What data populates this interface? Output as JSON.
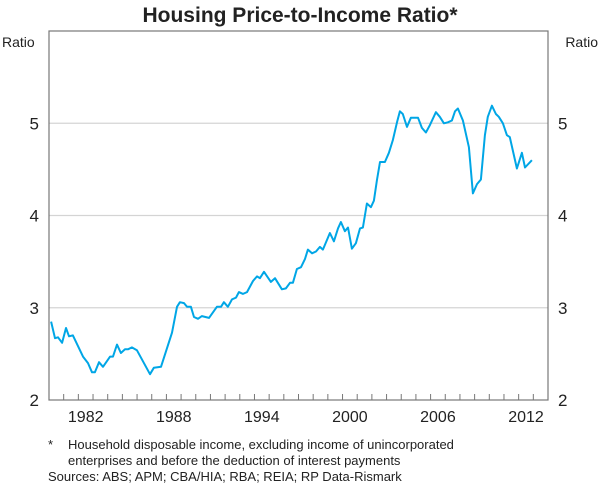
{
  "chart_data": {
    "type": "line",
    "title": "Housing Price-to-Income Ratio*",
    "ylabel_left": "Ratio",
    "ylabel_right": "Ratio",
    "xlim": [
      1980,
      2014
    ],
    "ylim": [
      2,
      6
    ],
    "yticks": [
      2,
      3,
      4,
      5
    ],
    "ytick_labels": [
      "2",
      "3",
      "4",
      "5"
    ],
    "xtick_labels": [
      {
        "year": 1982,
        "label": "1982"
      },
      {
        "year": 1988,
        "label": "1988"
      },
      {
        "year": 1994,
        "label": "1994"
      },
      {
        "year": 2000,
        "label": "2000"
      },
      {
        "year": 2006,
        "label": "2006"
      },
      {
        "year": 2012,
        "label": "2012"
      }
    ],
    "grid": "horizontal",
    "line_color": "#00a6e6",
    "series": [
      {
        "points": [
          [
            1980.14,
            2.85
          ],
          [
            1980.41,
            2.67
          ],
          [
            1980.61,
            2.68
          ],
          [
            1980.89,
            2.62
          ],
          [
            1981.16,
            2.78
          ],
          [
            1981.36,
            2.69
          ],
          [
            1981.63,
            2.7
          ],
          [
            1982.32,
            2.47
          ],
          [
            1982.66,
            2.4
          ],
          [
            1982.93,
            2.3
          ],
          [
            1983.13,
            2.3
          ],
          [
            1983.41,
            2.41
          ],
          [
            1983.68,
            2.36
          ],
          [
            1984.16,
            2.47
          ],
          [
            1984.36,
            2.47
          ],
          [
            1984.63,
            2.6
          ],
          [
            1984.9,
            2.51
          ],
          [
            1985.18,
            2.55
          ],
          [
            1985.38,
            2.55
          ],
          [
            1985.65,
            2.57
          ],
          [
            1985.99,
            2.54
          ],
          [
            1986.88,
            2.28
          ],
          [
            1987.15,
            2.35
          ],
          [
            1987.63,
            2.36
          ],
          [
            1988.38,
            2.73
          ],
          [
            1988.72,
            3.01
          ],
          [
            1988.92,
            3.06
          ],
          [
            1989.2,
            3.05
          ],
          [
            1989.4,
            3.01
          ],
          [
            1989.67,
            3.01
          ],
          [
            1989.88,
            2.9
          ],
          [
            1990.15,
            2.88
          ],
          [
            1990.42,
            2.91
          ],
          [
            1990.9,
            2.89
          ],
          [
            1991.44,
            3.01
          ],
          [
            1991.72,
            3.01
          ],
          [
            1991.92,
            3.06
          ],
          [
            1992.19,
            3.01
          ],
          [
            1992.47,
            3.09
          ],
          [
            1992.74,
            3.11
          ],
          [
            1992.94,
            3.17
          ],
          [
            1993.22,
            3.15
          ],
          [
            1993.49,
            3.17
          ],
          [
            1993.9,
            3.29
          ],
          [
            1994.17,
            3.34
          ],
          [
            1994.37,
            3.32
          ],
          [
            1994.65,
            3.39
          ],
          [
            1995.12,
            3.28
          ],
          [
            1995.4,
            3.32
          ],
          [
            1995.87,
            3.2
          ],
          [
            1996.14,
            3.21
          ],
          [
            1996.42,
            3.27
          ],
          [
            1996.62,
            3.27
          ],
          [
            1996.89,
            3.42
          ],
          [
            1997.17,
            3.44
          ],
          [
            1997.44,
            3.53
          ],
          [
            1997.64,
            3.63
          ],
          [
            1997.92,
            3.59
          ],
          [
            1998.19,
            3.61
          ],
          [
            1998.46,
            3.66
          ],
          [
            1998.66,
            3.63
          ],
          [
            1999.14,
            3.81
          ],
          [
            1999.41,
            3.72
          ],
          [
            1999.69,
            3.86
          ],
          [
            1999.89,
            3.93
          ],
          [
            2000.16,
            3.83
          ],
          [
            2000.37,
            3.87
          ],
          [
            2000.64,
            3.64
          ],
          [
            2000.91,
            3.7
          ],
          [
            2001.19,
            3.86
          ],
          [
            2001.39,
            3.87
          ],
          [
            2001.66,
            4.13
          ],
          [
            2001.93,
            4.09
          ],
          [
            2002.14,
            4.16
          ],
          [
            2002.34,
            4.38
          ],
          [
            2002.55,
            4.58
          ],
          [
            2002.89,
            4.58
          ],
          [
            2003.16,
            4.68
          ],
          [
            2003.43,
            4.82
          ],
          [
            2003.71,
            5.01
          ],
          [
            2003.91,
            5.13
          ],
          [
            2004.11,
            5.1
          ],
          [
            2004.39,
            4.96
          ],
          [
            2004.66,
            5.06
          ],
          [
            2005.14,
            5.06
          ],
          [
            2005.41,
            4.95
          ],
          [
            2005.68,
            4.9
          ],
          [
            2005.95,
            4.98
          ],
          [
            2006.36,
            5.12
          ],
          [
            2006.63,
            5.07
          ],
          [
            2006.91,
            5.0
          ],
          [
            2007.18,
            5.01
          ],
          [
            2007.45,
            5.03
          ],
          [
            2007.66,
            5.13
          ],
          [
            2007.86,
            5.16
          ],
          [
            2008.2,
            5.03
          ],
          [
            2008.61,
            4.74
          ],
          [
            2008.88,
            4.24
          ],
          [
            2009.16,
            4.34
          ],
          [
            2009.43,
            4.39
          ],
          [
            2009.7,
            4.87
          ],
          [
            2009.9,
            5.07
          ],
          [
            2010.18,
            5.19
          ],
          [
            2010.45,
            5.1
          ],
          [
            2010.65,
            5.07
          ],
          [
            2010.93,
            5.0
          ],
          [
            2011.2,
            4.87
          ],
          [
            2011.4,
            4.85
          ],
          [
            2011.88,
            4.51
          ],
          [
            2012.22,
            4.68
          ],
          [
            2012.43,
            4.52
          ],
          [
            2012.9,
            4.6
          ]
        ]
      }
    ]
  },
  "footnotes": {
    "marker": "*",
    "note_line1": "Household disposable income, excluding income of unincorporated",
    "note_line2": "enterprises and before the deduction of interest payments",
    "sources": "Sources: ABS; APM; CBA/HIA; RBA; REIA; RP Data-Rismark"
  }
}
